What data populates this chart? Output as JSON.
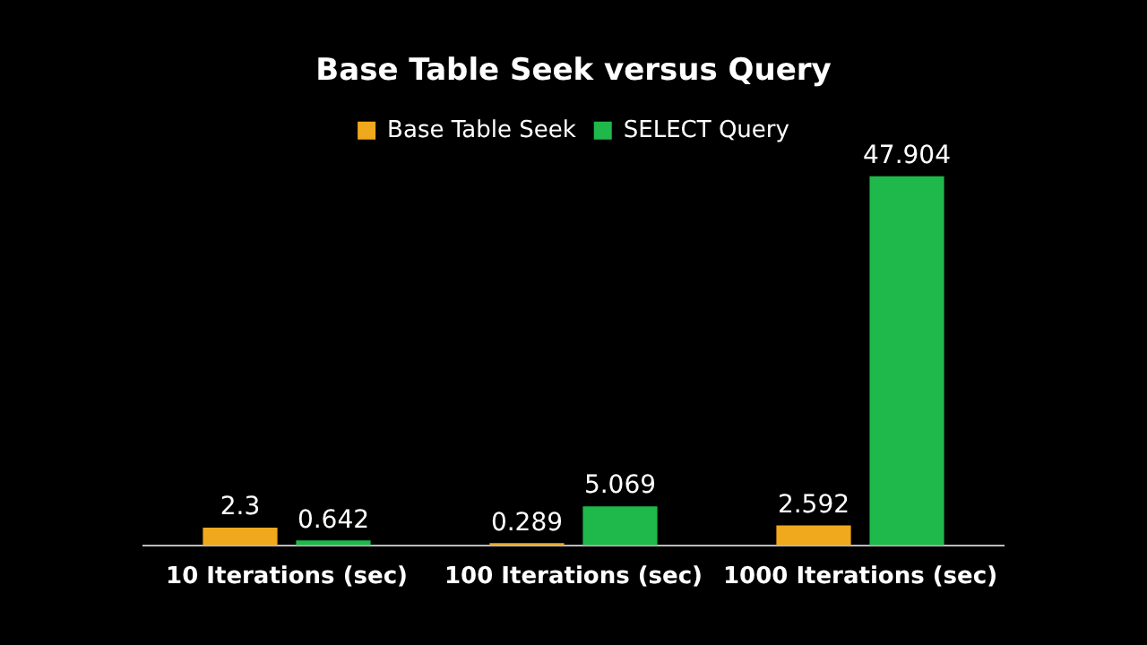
{
  "chart_data": {
    "type": "bar",
    "title": "Base Table Seek versus Query",
    "categories": [
      "10 Iterations (sec)",
      "100 Iterations (sec)",
      "1000 Iterations (sec)"
    ],
    "series": [
      {
        "name": "Base Table Seek",
        "color": "#f0a81c",
        "values": [
          2.3,
          0.289,
          2.592
        ]
      },
      {
        "name": "SELECT Query",
        "color": "#1fb84a",
        "values": [
          0.642,
          5.069,
          47.904
        ]
      }
    ],
    "data_labels": true,
    "legend": "top"
  }
}
